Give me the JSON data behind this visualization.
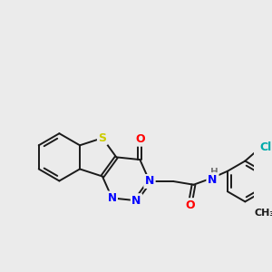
{
  "background_color": "#ebebeb",
  "bond_color": "#1a1a1a",
  "atom_colors": {
    "S": "#cccc00",
    "N": "#0000ff",
    "O": "#ff0000",
    "Cl": "#00aaaa",
    "H": "#777777",
    "C": "#1a1a1a"
  },
  "bond_width": 1.4,
  "figsize": [
    3.0,
    3.0
  ],
  "dpi": 100
}
